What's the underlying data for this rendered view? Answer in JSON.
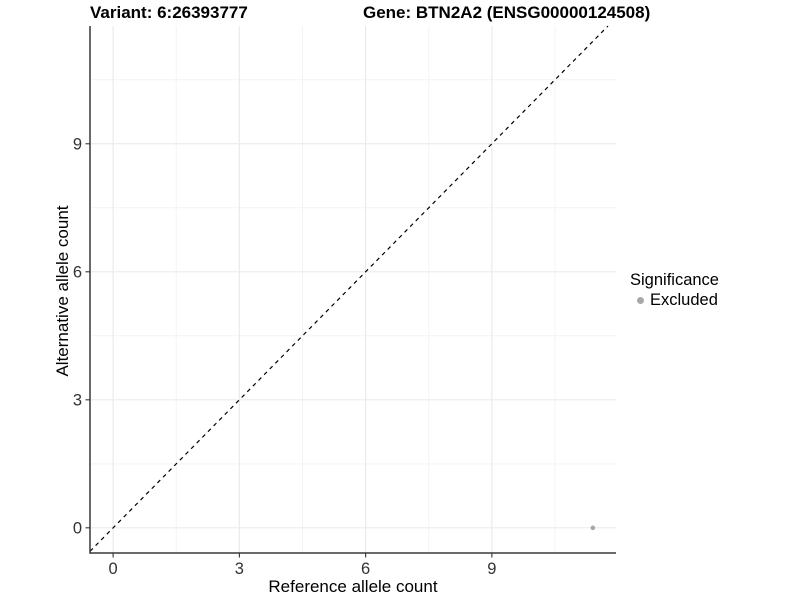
{
  "chart_data": {
    "type": "scatter",
    "title_left": "Variant: 6:26393777",
    "title_right": "Gene: BTN2A2 (ENSG00000124508)",
    "xlabel": "Reference allele count",
    "ylabel": "Alternative allele count",
    "xlim": [
      -0.55,
      11.95
    ],
    "ylim": [
      -0.59,
      11.76
    ],
    "xticks": [
      0,
      3,
      6,
      9
    ],
    "yticks": [
      0,
      3,
      6,
      9
    ],
    "minor_xticks": [
      1.5,
      4.5,
      7.5,
      10.5
    ],
    "minor_yticks": [
      1.5,
      4.5,
      7.5,
      10.5
    ],
    "grid": true,
    "legend_position": "right",
    "legend": {
      "title": "Significance",
      "entries": [
        {
          "label": "Excluded",
          "color": "#a8a8a8"
        }
      ]
    },
    "series": [
      {
        "name": "Excluded",
        "color": "#a8a8a8",
        "points": [
          {
            "x": 11.4,
            "y": 0
          }
        ]
      }
    ],
    "reference_line": {
      "kind": "identity",
      "style": "dashed",
      "color": "#000000"
    },
    "colors": {
      "background": "#ffffff",
      "grid_major": "#ebebeb",
      "grid_minor": "#f3f3f3",
      "axis_line": "#383838",
      "tick_mark": "#333333",
      "tick_text": "#333333"
    }
  }
}
